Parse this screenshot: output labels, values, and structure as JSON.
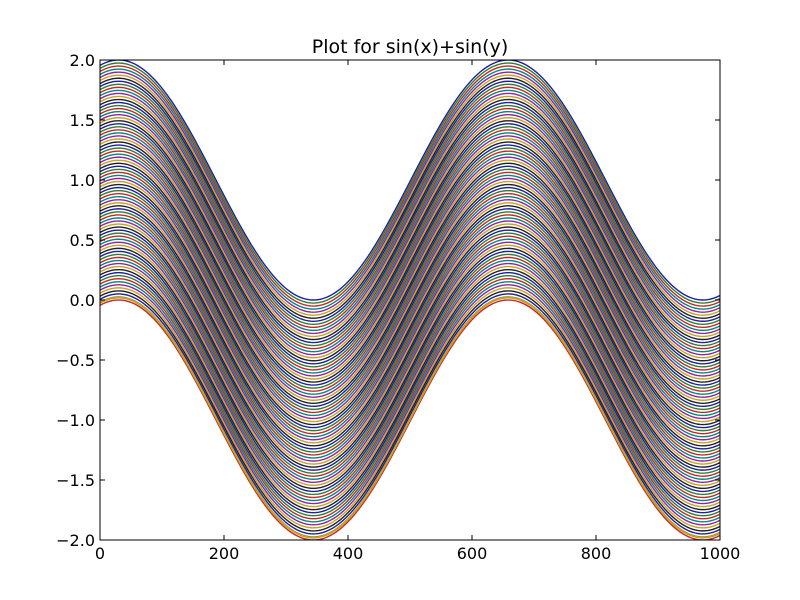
{
  "chart_data": {
    "type": "line",
    "title": "Plot for sin(x)+sin(y)",
    "xlabel": "",
    "ylabel": "",
    "xlim": [
      0,
      1000
    ],
    "ylim": [
      -2.0,
      2.0
    ],
    "x_ticks": [
      "0",
      "200",
      "400",
      "600",
      "800",
      "1000"
    ],
    "y_ticks": [
      "−2.0",
      "−1.5",
      "−1.0",
      "−0.5",
      "0.0",
      "0.5",
      "1.0",
      "1.5",
      "2.0"
    ],
    "x_tick_values": [
      0,
      200,
      400,
      600,
      800,
      1000
    ],
    "y_tick_values": [
      -2.0,
      -1.5,
      -1.0,
      -0.5,
      0.0,
      0.5,
      1.0,
      1.5,
      2.0
    ],
    "grid": false,
    "legend": "none",
    "series_description": "Many overlapping curves of sin(x)+sin(y) with x spanning the horizontal axis and y held at a different constant for each curve; peaks near x≈30 and x≈660, troughs near x≈345 and x≈985.",
    "x_sample_range": [
      0,
      1000
    ],
    "curve_count": 80,
    "series_family": {
      "x_period": 628.3,
      "x_phase_peak": 30,
      "offset_min": -1.0,
      "offset_max": 1.0
    },
    "colors": [
      "#1f1f9f",
      "#2e7d32",
      "#c62828",
      "#00897b",
      "#8e24aa",
      "#c8a11e",
      "#222222"
    ],
    "highlight_series": {
      "offset": -0.98,
      "color": "#c8a11e"
    }
  }
}
